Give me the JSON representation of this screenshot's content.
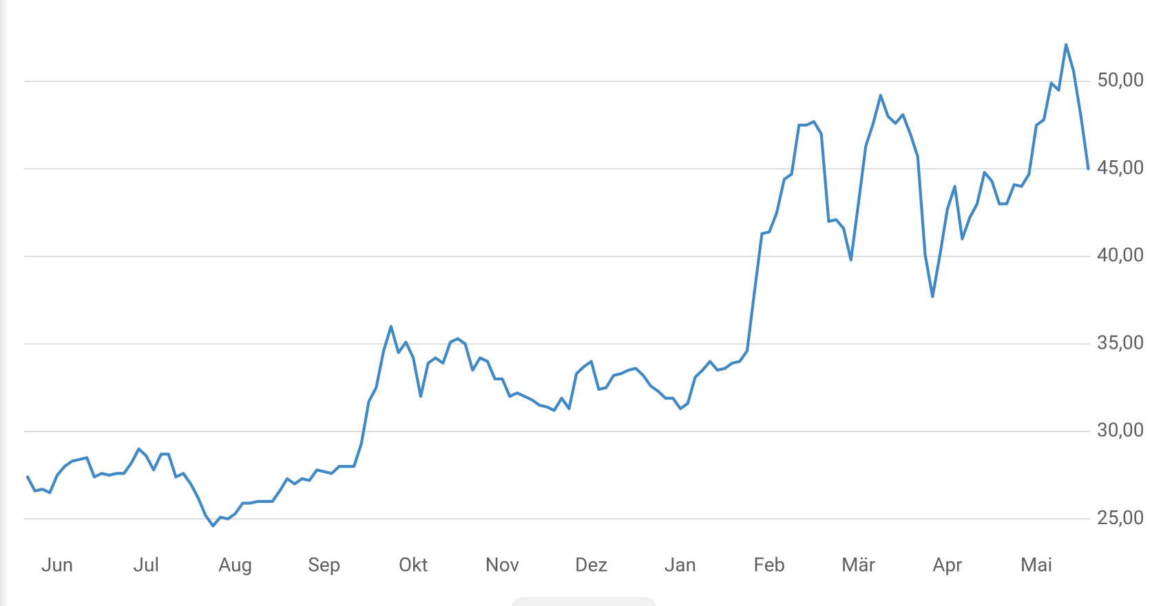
{
  "chart_data": {
    "type": "line",
    "categories": [
      null,
      null,
      null,
      null,
      "Jun",
      null,
      null,
      null,
      null,
      null,
      null,
      null,
      null,
      null,
      null,
      null,
      "Jul",
      null,
      null,
      null,
      null,
      null,
      null,
      null,
      null,
      null,
      null,
      null,
      "Aug",
      null,
      null,
      null,
      null,
      null,
      null,
      null,
      null,
      null,
      null,
      null,
      "Sep",
      null,
      null,
      null,
      null,
      null,
      null,
      null,
      null,
      null,
      null,
      null,
      "Okt",
      null,
      null,
      null,
      null,
      null,
      null,
      null,
      null,
      null,
      null,
      null,
      "Nov",
      null,
      null,
      null,
      null,
      null,
      null,
      null,
      null,
      null,
      null,
      null,
      "Dez",
      null,
      null,
      null,
      null,
      null,
      null,
      null,
      null,
      null,
      null,
      null,
      "Jan",
      null,
      null,
      null,
      null,
      null,
      null,
      null,
      null,
      null,
      null,
      null,
      "Feb",
      null,
      null,
      null,
      null,
      null,
      null,
      null,
      null,
      null,
      null,
      null,
      "Mär",
      null,
      null,
      null,
      null,
      null,
      null,
      null,
      null,
      null,
      null,
      null,
      "Apr",
      null,
      null,
      null,
      null,
      null,
      null,
      null,
      null,
      null,
      null,
      null,
      "Mai",
      null,
      null,
      null,
      null,
      null,
      null,
      null
    ],
    "values": [
      27.4,
      26.6,
      26.7,
      26.5,
      27.5,
      28.0,
      28.3,
      28.4,
      28.5,
      27.4,
      27.6,
      27.5,
      27.6,
      27.6,
      28.2,
      29.0,
      28.6,
      27.8,
      28.7,
      28.7,
      27.4,
      27.6,
      27.0,
      26.2,
      25.2,
      24.6,
      25.1,
      25.0,
      25.3,
      25.9,
      25.9,
      26.0,
      26.0,
      26.0,
      26.6,
      27.3,
      27.0,
      27.3,
      27.2,
      27.8,
      27.7,
      27.6,
      28.0,
      28.0,
      28.0,
      29.3,
      31.7,
      32.5,
      34.6,
      36.0,
      34.5,
      35.1,
      34.2,
      32.0,
      33.9,
      34.2,
      33.9,
      35.1,
      35.3,
      35.0,
      33.5,
      34.2,
      34.0,
      33.0,
      33.0,
      32.0,
      32.2,
      32.0,
      31.8,
      31.5,
      31.4,
      31.2,
      31.9,
      31.3,
      33.3,
      33.7,
      34.0,
      32.4,
      32.5,
      33.2,
      33.3,
      33.5,
      33.6,
      33.2,
      32.6,
      32.3,
      31.9,
      31.9,
      31.3,
      31.6,
      33.1,
      33.5,
      34.0,
      33.5,
      33.6,
      33.9,
      34.0,
      34.6,
      38.0,
      41.3,
      41.4,
      42.5,
      44.4,
      44.7,
      47.5,
      47.5,
      47.7,
      47.0,
      42.0,
      42.1,
      41.6,
      39.8,
      43.0,
      46.3,
      47.6,
      49.2,
      48.0,
      47.6,
      48.1,
      47.0,
      45.7,
      40.1,
      37.7,
      40.1,
      42.7,
      44.0,
      41.0,
      42.2,
      43.0,
      44.8,
      44.3,
      43.0,
      43.0,
      44.1,
      44.0,
      44.7,
      47.5,
      47.8,
      49.9,
      49.5,
      52.1,
      50.6,
      48.0,
      45.0
    ],
    "color": "#4189c6",
    "ylim": [
      23.5,
      52.9
    ],
    "yticks": [
      {
        "value": 25,
        "label": "25,00"
      },
      {
        "value": 30,
        "label": "30,00"
      },
      {
        "value": 35,
        "label": "35,00"
      },
      {
        "value": 40,
        "label": "40,00"
      },
      {
        "value": 45,
        "label": "45,00"
      },
      {
        "value": 50,
        "label": "50,00"
      }
    ],
    "grid": true
  }
}
